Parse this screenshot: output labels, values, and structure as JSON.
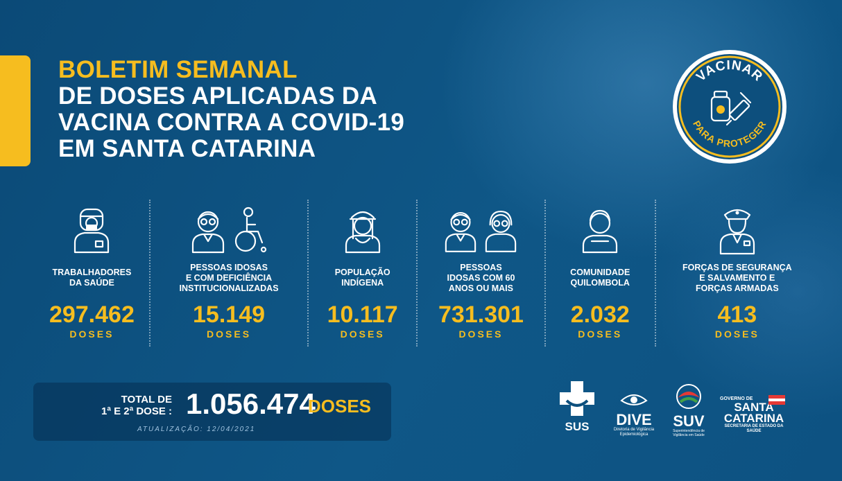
{
  "header": {
    "title_line1": "BOLETIM SEMANAL",
    "title_line2": "DE DOSES APLICADAS DA",
    "title_line3": "VACINA CONTRA A COVID-19",
    "title_line4": "EM SANTA CATARINA"
  },
  "seal": {
    "top_text": "VACINAR",
    "bottom_text": "PARA PROTEGER"
  },
  "groups": [
    {
      "label": "TRABALHADORES\nDA SAÚDE",
      "value": "297.462",
      "unit": "DOSES",
      "icons": [
        "health-worker-icon"
      ]
    },
    {
      "label": "PESSOAS IDOSAS\nE COM DEFICIÊNCIA\nINSTITUCIONALIZADAS",
      "value": "15.149",
      "unit": "DOSES",
      "icons": [
        "elderly-man-icon",
        "wheelchair-icon"
      ]
    },
    {
      "label": "POPULAÇÃO\nINDÍGENA",
      "value": "10.117",
      "unit": "DOSES",
      "icons": [
        "indigenous-person-icon"
      ]
    },
    {
      "label": "PESSOAS\nIDOSAS COM 60\nANOS OU MAIS",
      "value": "731.301",
      "unit": "DOSES",
      "icons": [
        "elderly-man-icon",
        "elderly-woman-icon"
      ]
    },
    {
      "label": "COMUNIDADE\nQUILOMBOLA",
      "value": "2.032",
      "unit": "DOSES",
      "icons": [
        "quilombola-person-icon"
      ]
    },
    {
      "label": "FORÇAS DE SEGURANÇA\nE SALVAMENTO E\nFORÇAS ARMADAS",
      "value": "413",
      "unit": "DOSES",
      "icons": [
        "officer-icon"
      ]
    }
  ],
  "total": {
    "label": "TOTAL DE\n1ª E 2ª DOSE :",
    "value": "1.056.474",
    "unit": "DOSES",
    "update": "ATUALIZAÇÃO: 12/04/2021"
  },
  "logos": {
    "sus": "SUS",
    "dive": "DIVE",
    "dive_sub": "Diretoria de Vigilância Epidemiológica",
    "suv": "SUV",
    "suv_sub": "Superintendência de Vigilância em Saúde",
    "gov_top": "GOVERNO DE",
    "gov_line1": "SANTA",
    "gov_line2": "CATARINA",
    "gov_sub": "SECRETARIA DE ESTADO DA SAÚDE"
  },
  "colors": {
    "accent": "#f6bd1f",
    "background": "#0d4f7d",
    "text": "#ffffff"
  }
}
